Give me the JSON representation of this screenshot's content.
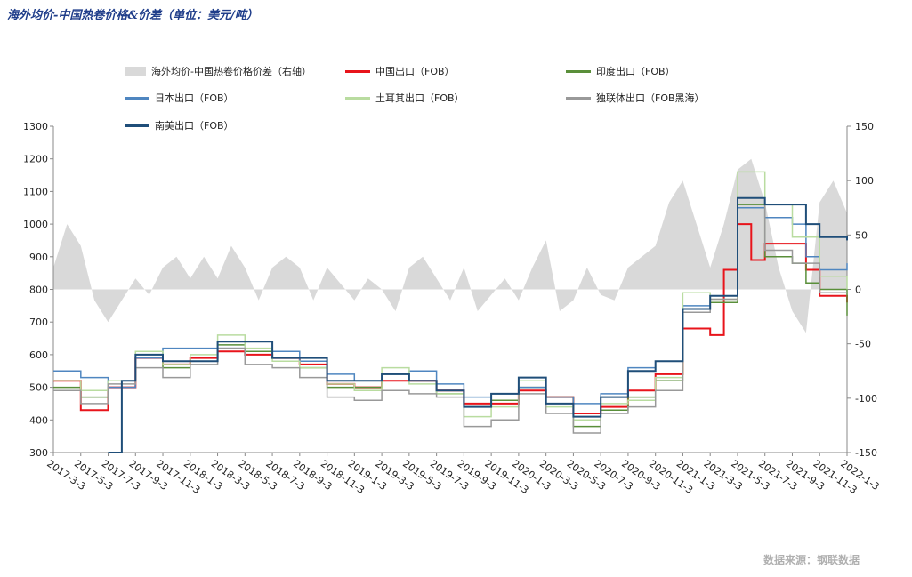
{
  "title": "海外均价-中国热卷价格&价差（单位：美元/吨）",
  "source": "数据来源：钢联数据",
  "chart_data": {
    "type": "line",
    "left_axis": {
      "ylim": [
        300,
        1300
      ],
      "ticks": [
        "300",
        "400",
        "500",
        "600",
        "700",
        "800",
        "900",
        "1000",
        "1100",
        "1200",
        "1300"
      ]
    },
    "right_axis": {
      "ylim": [
        -150,
        150
      ],
      "ticks": [
        "-150",
        "-100",
        "-50",
        "0",
        "50",
        "100",
        "150"
      ]
    },
    "x_ticks": [
      "2017-3-3",
      "2017-5-3",
      "2017-7-3",
      "2017-9-3",
      "2017-11-3",
      "2018-1-3",
      "2018-3-3",
      "2018-5-3",
      "2018-7-3",
      "2018-9-3",
      "2018-11-3",
      "2019-1-3",
      "2019-3-3",
      "2019-5-3",
      "2019-7-3",
      "2019-9-3",
      "2019-11-3",
      "2020-1-3",
      "2020-3-3",
      "2020-5-3",
      "2020-7-3",
      "2020-9-3",
      "2020-11-3",
      "2021-1-3",
      "2021-3-3",
      "2021-5-3",
      "2021-7-3",
      "2021-9-3",
      "2021-11-3",
      "2022-1-3"
    ],
    "grid": false,
    "legend_position": "top",
    "spread": {
      "name": "海外均价-中国热卷价格价差（右轴）",
      "type": "area",
      "axis": "right",
      "color": "#d9d9d9",
      "points": [
        [
          "2017-03",
          20
        ],
        [
          "2017-04",
          60
        ],
        [
          "2017-05",
          40
        ],
        [
          "2017-06",
          -10
        ],
        [
          "2017-07",
          -30
        ],
        [
          "2017-08",
          -10
        ],
        [
          "2017-09",
          10
        ],
        [
          "2017-10",
          -5
        ],
        [
          "2017-11",
          20
        ],
        [
          "2017-12",
          30
        ],
        [
          "2018-01",
          10
        ],
        [
          "2018-02",
          30
        ],
        [
          "2018-03",
          10
        ],
        [
          "2018-04",
          40
        ],
        [
          "2018-05",
          20
        ],
        [
          "2018-06",
          -10
        ],
        [
          "2018-07",
          20
        ],
        [
          "2018-08",
          30
        ],
        [
          "2018-09",
          20
        ],
        [
          "2018-10",
          -10
        ],
        [
          "2018-11",
          20
        ],
        [
          "2018-12",
          5
        ],
        [
          "2019-01",
          -10
        ],
        [
          "2019-02",
          10
        ],
        [
          "2019-03",
          0
        ],
        [
          "2019-04",
          -20
        ],
        [
          "2019-05",
          20
        ],
        [
          "2019-06",
          30
        ],
        [
          "2019-07",
          10
        ],
        [
          "2019-08",
          -10
        ],
        [
          "2019-09",
          20
        ],
        [
          "2019-10",
          -20
        ],
        [
          "2019-11",
          -5
        ],
        [
          "2019-12",
          10
        ],
        [
          "2020-01",
          -10
        ],
        [
          "2020-02",
          20
        ],
        [
          "2020-03",
          45
        ],
        [
          "2020-04",
          -20
        ],
        [
          "2020-05",
          -10
        ],
        [
          "2020-06",
          20
        ],
        [
          "2020-07",
          -5
        ],
        [
          "2020-08",
          -10
        ],
        [
          "2020-09",
          20
        ],
        [
          "2020-10",
          30
        ],
        [
          "2020-11",
          40
        ],
        [
          "2020-12",
          80
        ],
        [
          "2021-01",
          100
        ],
        [
          "2021-02",
          60
        ],
        [
          "2021-03",
          20
        ],
        [
          "2021-04",
          60
        ],
        [
          "2021-05",
          110
        ],
        [
          "2021-06",
          120
        ],
        [
          "2021-07",
          80
        ],
        [
          "2021-08",
          20
        ],
        [
          "2021-09",
          -20
        ],
        [
          "2021-10",
          -40
        ],
        [
          "2021-11",
          80
        ],
        [
          "2021-12",
          100
        ],
        [
          "2022-01",
          70
        ]
      ]
    },
    "series": [
      {
        "name": "中国出口（FOB）",
        "color": "#e8141b",
        "width": 2,
        "points": [
          [
            "2017-03",
            520
          ],
          [
            "2017-05",
            430
          ],
          [
            "2017-07",
            500
          ],
          [
            "2017-09",
            590
          ],
          [
            "2017-11",
            570
          ],
          [
            "2018-01",
            590
          ],
          [
            "2018-03",
            610
          ],
          [
            "2018-05",
            600
          ],
          [
            "2018-07",
            590
          ],
          [
            "2018-09",
            570
          ],
          [
            "2018-11",
            510
          ],
          [
            "2019-01",
            500
          ],
          [
            "2019-03",
            520
          ],
          [
            "2019-05",
            520
          ],
          [
            "2019-07",
            490
          ],
          [
            "2019-09",
            450
          ],
          [
            "2019-11",
            450
          ],
          [
            "2020-01",
            490
          ],
          [
            "2020-03",
            470
          ],
          [
            "2020-05",
            420
          ],
          [
            "2020-07",
            440
          ],
          [
            "2020-09",
            490
          ],
          [
            "2020-11",
            540
          ],
          [
            "2021-01",
            680
          ],
          [
            "2021-03",
            660
          ],
          [
            "2021-04",
            860
          ],
          [
            "2021-05",
            1000
          ],
          [
            "2021-06",
            890
          ],
          [
            "2021-07",
            940
          ],
          [
            "2021-09",
            940
          ],
          [
            "2021-10",
            860
          ],
          [
            "2021-11",
            780
          ],
          [
            "2022-01",
            760
          ]
        ]
      },
      {
        "name": "印度出口（FOB）",
        "color": "#5a8f3a",
        "width": 1.5,
        "points": [
          [
            "2017-03",
            500
          ],
          [
            "2017-05",
            470
          ],
          [
            "2017-07",
            520
          ],
          [
            "2017-09",
            600
          ],
          [
            "2017-11",
            560
          ],
          [
            "2018-01",
            580
          ],
          [
            "2018-03",
            630
          ],
          [
            "2018-05",
            610
          ],
          [
            "2018-07",
            590
          ],
          [
            "2018-09",
            560
          ],
          [
            "2018-11",
            500
          ],
          [
            "2019-01",
            500
          ],
          [
            "2019-03",
            540
          ],
          [
            "2019-05",
            520
          ],
          [
            "2019-07",
            480
          ],
          [
            "2019-09",
            440
          ],
          [
            "2019-11",
            460
          ],
          [
            "2020-01",
            500
          ],
          [
            "2020-03",
            470
          ],
          [
            "2020-05",
            380
          ],
          [
            "2020-07",
            430
          ],
          [
            "2020-09",
            470
          ],
          [
            "2020-11",
            520
          ],
          [
            "2021-01",
            740
          ],
          [
            "2021-03",
            760
          ],
          [
            "2021-05",
            1060
          ],
          [
            "2021-07",
            900
          ],
          [
            "2021-09",
            880
          ],
          [
            "2021-10",
            820
          ],
          [
            "2021-11",
            800
          ],
          [
            "2022-01",
            720
          ]
        ]
      },
      {
        "name": "日本出口（FOB）",
        "color": "#4f86c0",
        "width": 1.5,
        "points": [
          [
            "2017-03",
            550
          ],
          [
            "2017-05",
            530
          ],
          [
            "2017-07",
            500
          ],
          [
            "2017-09",
            590
          ],
          [
            "2017-11",
            620
          ],
          [
            "2018-01",
            620
          ],
          [
            "2018-03",
            620
          ],
          [
            "2018-05",
            640
          ],
          [
            "2018-07",
            610
          ],
          [
            "2018-09",
            580
          ],
          [
            "2018-11",
            540
          ],
          [
            "2019-01",
            520
          ],
          [
            "2019-03",
            540
          ],
          [
            "2019-05",
            550
          ],
          [
            "2019-07",
            510
          ],
          [
            "2019-09",
            470
          ],
          [
            "2019-11",
            480
          ],
          [
            "2020-01",
            500
          ],
          [
            "2020-03",
            470
          ],
          [
            "2020-05",
            450
          ],
          [
            "2020-07",
            480
          ],
          [
            "2020-09",
            560
          ],
          [
            "2020-11",
            580
          ],
          [
            "2021-01",
            750
          ],
          [
            "2021-03",
            780
          ],
          [
            "2021-05",
            1050
          ],
          [
            "2021-07",
            1020
          ],
          [
            "2021-09",
            1000
          ],
          [
            "2021-10",
            900
          ],
          [
            "2021-11",
            860
          ],
          [
            "2022-01",
            880
          ]
        ]
      },
      {
        "name": "土耳其出口（FOB）",
        "color": "#b9dca0",
        "width": 1.5,
        "points": [
          [
            "2017-03",
            520
          ],
          [
            "2017-05",
            490
          ],
          [
            "2017-07",
            520
          ],
          [
            "2017-09",
            610
          ],
          [
            "2017-11",
            570
          ],
          [
            "2018-01",
            600
          ],
          [
            "2018-03",
            660
          ],
          [
            "2018-05",
            620
          ],
          [
            "2018-07",
            580
          ],
          [
            "2018-09",
            560
          ],
          [
            "2018-11",
            510
          ],
          [
            "2019-01",
            490
          ],
          [
            "2019-03",
            560
          ],
          [
            "2019-05",
            510
          ],
          [
            "2019-07",
            480
          ],
          [
            "2019-09",
            410
          ],
          [
            "2019-11",
            440
          ],
          [
            "2020-01",
            520
          ],
          [
            "2020-03",
            440
          ],
          [
            "2020-05",
            400
          ],
          [
            "2020-07",
            450
          ],
          [
            "2020-09",
            460
          ],
          [
            "2020-11",
            530
          ],
          [
            "2021-01",
            790
          ],
          [
            "2021-03",
            770
          ],
          [
            "2021-05",
            1160
          ],
          [
            "2021-07",
            1060
          ],
          [
            "2021-09",
            960
          ],
          [
            "2021-11",
            840
          ],
          [
            "2022-01",
            800
          ]
        ]
      },
      {
        "name": "独联体出口（FOB黑海）",
        "color": "#999999",
        "width": 1.5,
        "points": [
          [
            "2017-03",
            490
          ],
          [
            "2017-05",
            450
          ],
          [
            "2017-07",
            510
          ],
          [
            "2017-09",
            560
          ],
          [
            "2017-11",
            530
          ],
          [
            "2018-01",
            570
          ],
          [
            "2018-03",
            620
          ],
          [
            "2018-05",
            570
          ],
          [
            "2018-07",
            560
          ],
          [
            "2018-09",
            530
          ],
          [
            "2018-11",
            470
          ],
          [
            "2019-01",
            460
          ],
          [
            "2019-03",
            490
          ],
          [
            "2019-05",
            480
          ],
          [
            "2019-07",
            470
          ],
          [
            "2019-09",
            380
          ],
          [
            "2019-11",
            400
          ],
          [
            "2020-01",
            480
          ],
          [
            "2020-03",
            420
          ],
          [
            "2020-05",
            360
          ],
          [
            "2020-07",
            420
          ],
          [
            "2020-09",
            440
          ],
          [
            "2020-11",
            490
          ],
          [
            "2021-01",
            730
          ],
          [
            "2021-03",
            770
          ],
          [
            "2021-05",
            1080
          ],
          [
            "2021-07",
            920
          ],
          [
            "2021-09",
            880
          ],
          [
            "2021-11",
            790
          ],
          [
            "2022-01",
            790
          ]
        ]
      },
      {
        "name": "南美出口（FOB）",
        "color": "#1f4e79",
        "width": 2,
        "points": [
          [
            "2017-07",
            300
          ],
          [
            "2017-08",
            520
          ],
          [
            "2017-09",
            600
          ],
          [
            "2017-11",
            580
          ],
          [
            "2018-01",
            580
          ],
          [
            "2018-03",
            640
          ],
          [
            "2018-05",
            640
          ],
          [
            "2018-07",
            590
          ],
          [
            "2018-09",
            590
          ],
          [
            "2018-11",
            520
          ],
          [
            "2019-01",
            520
          ],
          [
            "2019-03",
            540
          ],
          [
            "2019-05",
            520
          ],
          [
            "2019-07",
            490
          ],
          [
            "2019-09",
            440
          ],
          [
            "2019-11",
            480
          ],
          [
            "2020-01",
            530
          ],
          [
            "2020-03",
            450
          ],
          [
            "2020-05",
            410
          ],
          [
            "2020-07",
            470
          ],
          [
            "2020-09",
            550
          ],
          [
            "2020-11",
            580
          ],
          [
            "2021-01",
            740
          ],
          [
            "2021-03",
            780
          ],
          [
            "2021-05",
            1080
          ],
          [
            "2021-07",
            1060
          ],
          [
            "2021-09",
            1060
          ],
          [
            "2021-10",
            1000
          ],
          [
            "2021-11",
            960
          ],
          [
            "2022-01",
            950
          ]
        ]
      }
    ]
  }
}
